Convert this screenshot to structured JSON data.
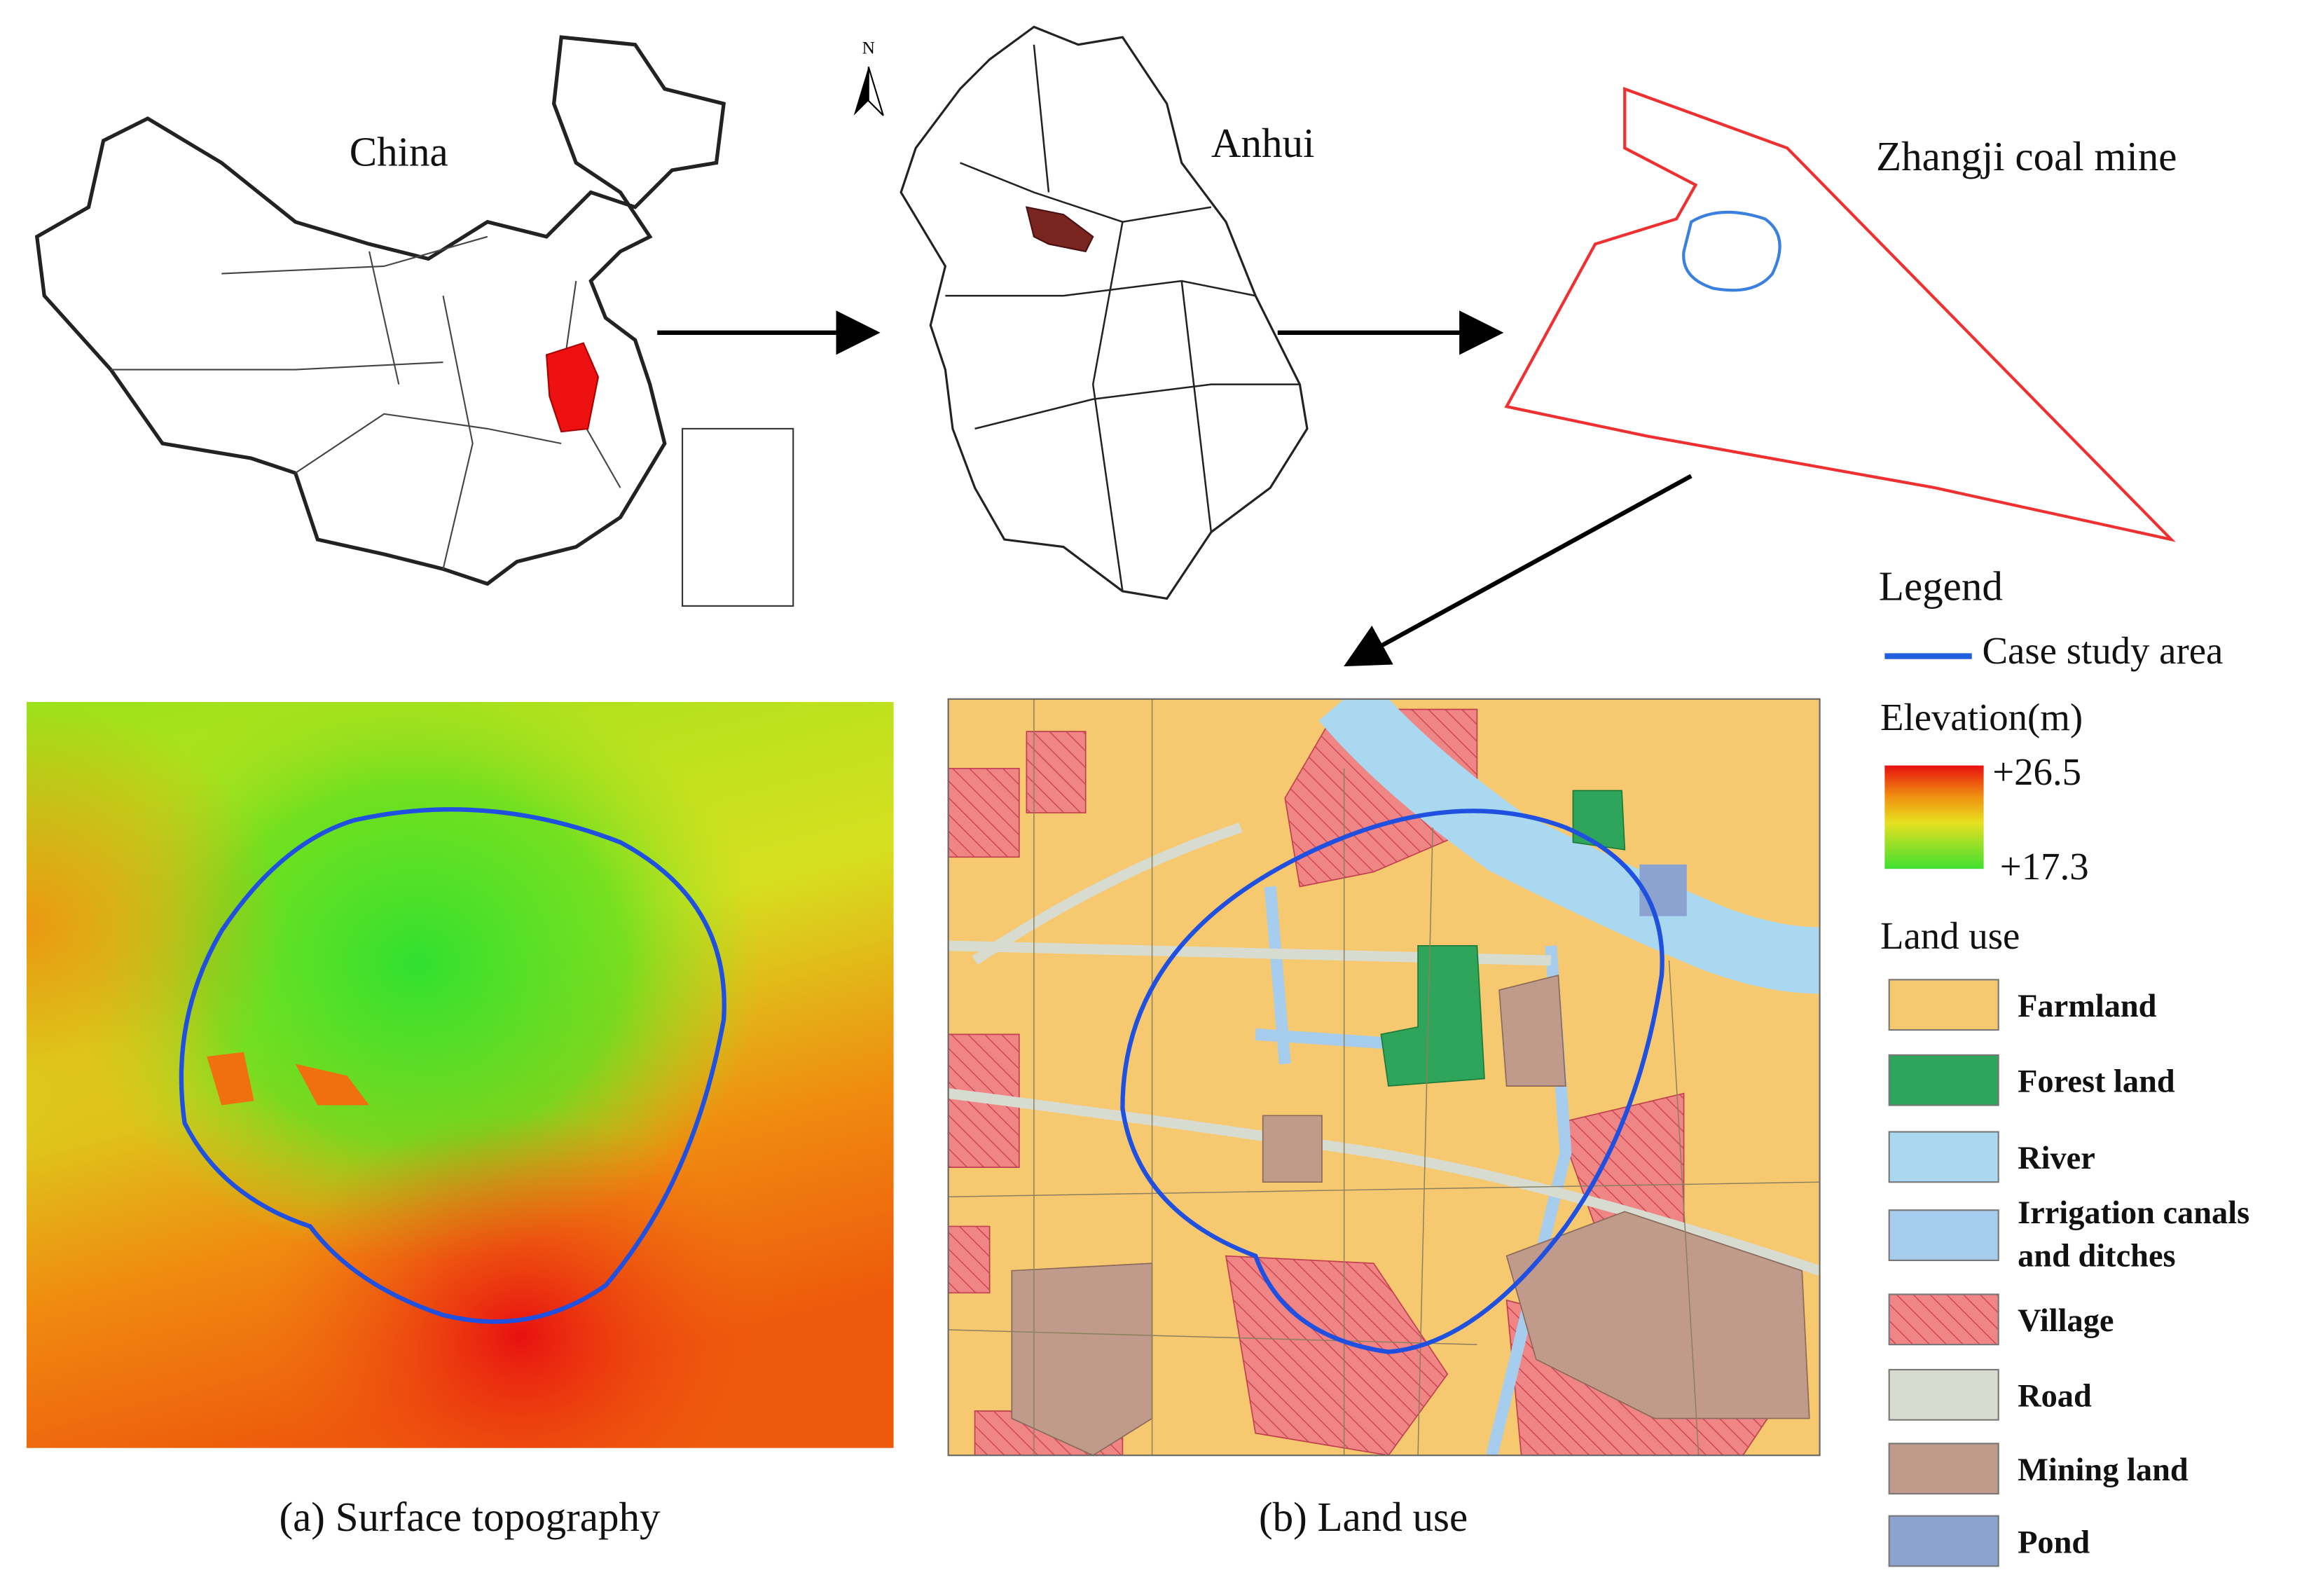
{
  "maps": {
    "china": {
      "label": "China"
    },
    "anhui": {
      "label": "Anhui"
    },
    "mine": {
      "label": "Zhangji coal mine"
    },
    "north": "N"
  },
  "legend": {
    "title": "Legend",
    "case_study": "Case study area",
    "elevation": {
      "title": "Elevation(m)",
      "max": "+26.5",
      "min": "+17.3"
    },
    "land_use": {
      "title": "Land use",
      "items": [
        {
          "label": "Farmland"
        },
        {
          "label": "Forest land"
        },
        {
          "label": "River"
        },
        {
          "label_lines": [
            "Irrigation canals",
            "and ditches"
          ]
        },
        {
          "label": "Village"
        },
        {
          "label": "Road"
        },
        {
          "label": "Mining land"
        },
        {
          "label": "Pond"
        }
      ]
    }
  },
  "captions": {
    "a": "(a) Surface topography",
    "b": "(b) Land use"
  }
}
